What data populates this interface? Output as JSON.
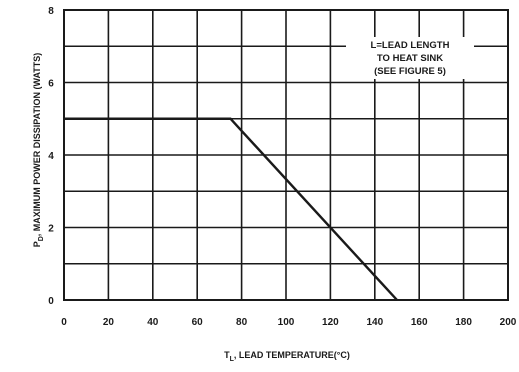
{
  "chart_data": {
    "type": "line",
    "xlabel_main": "T",
    "xlabel_sub": "L",
    "xlabel_rest": ", LEAD TEMPERATURE(°C)",
    "ylabel_main": "P",
    "ylabel_sub": "D",
    "ylabel_rest": ", MAXIMUM POWER DISSIPATION (WATTS)",
    "xlim": [
      0,
      200
    ],
    "ylim": [
      0,
      8
    ],
    "x_ticks": [
      0,
      20,
      40,
      60,
      80,
      100,
      120,
      140,
      160,
      180,
      200
    ],
    "y_ticks": [
      0,
      2,
      4,
      6,
      8
    ],
    "x_grid_step": 20,
    "y_grid_step": 1,
    "grid": true,
    "annotation": [
      "L=LEAD LENGTH",
      "TO HEAT SINK",
      "(SEE FIGURE 5)"
    ],
    "series": [
      {
        "x": [
          0,
          75,
          150
        ],
        "y": [
          5,
          5,
          0
        ]
      }
    ]
  }
}
